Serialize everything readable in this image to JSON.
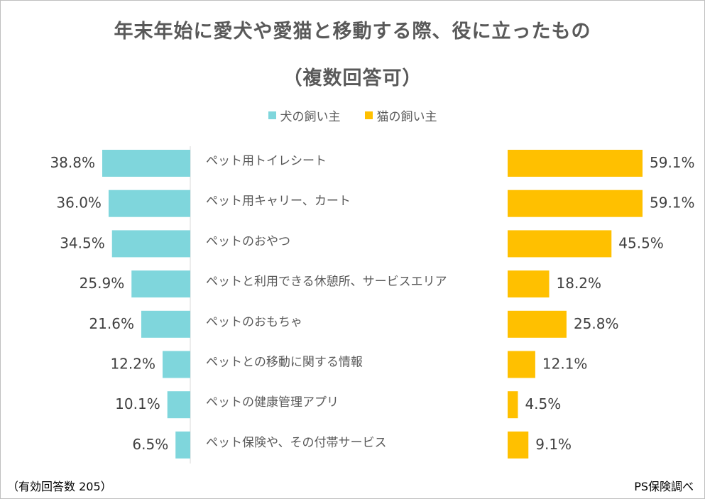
{
  "title_line1": "年末年始に愛犬や愛猫と移動する際、役に立ったもの",
  "title_line2": "（複数回答可）",
  "footer_left": "（有効回答数 205）",
  "footer_right": "PS保険調べ",
  "colors": {
    "dog": "#7fd6dc",
    "cat": "#ffc000",
    "axis": "#d9d9d9"
  },
  "chart_data": {
    "type": "bar",
    "orientation": "horizontal-butterfly",
    "title": "年末年始に愛犬や愛猫と移動する際、役に立ったもの（複数回答可）",
    "categories": [
      "ペット用トイレシート",
      "ペット用キャリー、カート",
      "ペットのおやつ",
      "ペットと利用できる休憩所、サービスエリア",
      "ペットのおもちゃ",
      "ペットとの移動に関する情報",
      "ペットの健康管理アプリ",
      "ペット保険や、その付帯サービス"
    ],
    "series": [
      {
        "name": "犬の飼い主",
        "values": [
          38.8,
          36.0,
          34.5,
          25.9,
          21.6,
          12.2,
          10.1,
          6.5
        ],
        "labels": [
          "38.8%",
          "36.0%",
          "34.5%",
          "25.9%",
          "21.6%",
          "12.2%",
          "10.1%",
          "6.5%"
        ]
      },
      {
        "name": "猫の飼い主",
        "values": [
          59.1,
          59.1,
          45.5,
          18.2,
          25.8,
          12.1,
          4.5,
          9.1
        ],
        "labels": [
          "59.1%",
          "59.1%",
          "45.5%",
          "18.2%",
          "25.8%",
          "12.1%",
          "4.5%",
          "9.1%"
        ]
      }
    ],
    "unit": "%",
    "legend": "top-center"
  }
}
